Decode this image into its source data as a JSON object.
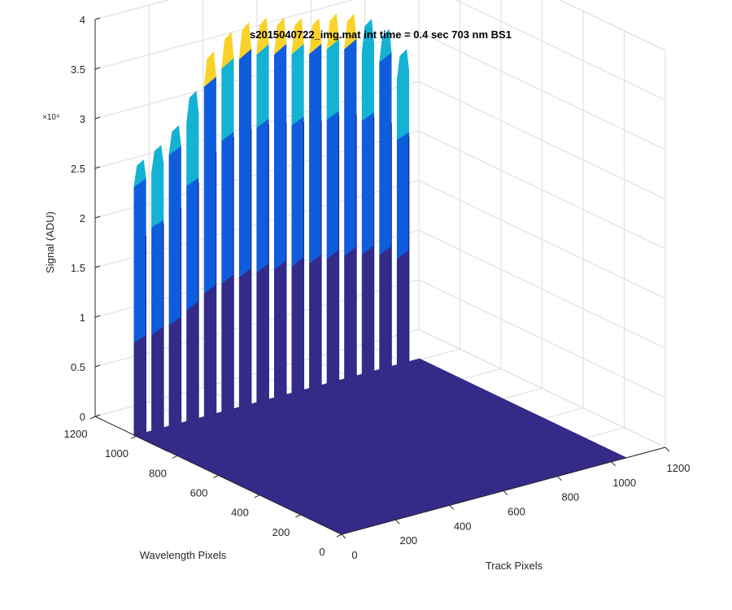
{
  "chart_data": {
    "type": "surface",
    "title": "s2015040722_img.mat int time = 0.4 sec  703 nm BS1",
    "xlabel": "Track Pixels",
    "ylabel": "Wavelength Pixels",
    "zlabel": "Signal (ADU)",
    "z_exponent_label": "×10⁴",
    "xlim": [
      0,
      1200
    ],
    "ylim": [
      0,
      1200
    ],
    "zlim": [
      0,
      40000
    ],
    "x_ticks": [
      "0",
      "200",
      "400",
      "600",
      "800",
      "1000",
      "1200"
    ],
    "y_ticks": [
      "0",
      "200",
      "400",
      "600",
      "800",
      "1000",
      "1200"
    ],
    "z_ticks": [
      "0",
      "0.5",
      "1",
      "1.5",
      "2",
      "2.5",
      "3",
      "3.5",
      "4"
    ],
    "grid": true,
    "colormap": "parula",
    "colors": {
      "low": "#352a87",
      "mid": "#0f5cdd",
      "upper": "#14b2d3",
      "high": "#f9d32b"
    },
    "tracks": [
      {
        "track_pixel": 20,
        "peak_signal": 27500
      },
      {
        "track_pixel": 85,
        "peak_signal": 28500
      },
      {
        "track_pixel": 150,
        "peak_signal": 30000
      },
      {
        "track_pixel": 215,
        "peak_signal": 33000
      },
      {
        "track_pixel": 280,
        "peak_signal": 36500
      },
      {
        "track_pixel": 345,
        "peak_signal": 38000
      },
      {
        "track_pixel": 410,
        "peak_signal": 38500
      },
      {
        "track_pixel": 475,
        "peak_signal": 38500
      },
      {
        "track_pixel": 540,
        "peak_signal": 38000
      },
      {
        "track_pixel": 605,
        "peak_signal": 37500
      },
      {
        "track_pixel": 670,
        "peak_signal": 37000
      },
      {
        "track_pixel": 735,
        "peak_signal": 37000
      },
      {
        "track_pixel": 800,
        "peak_signal": 36500
      },
      {
        "track_pixel": 865,
        "peak_signal": 35500
      },
      {
        "track_pixel": 930,
        "peak_signal": 34000
      },
      {
        "track_pixel": 995,
        "peak_signal": 31500
      }
    ],
    "signal_wavelength_range": [
      1000,
      1200
    ]
  }
}
